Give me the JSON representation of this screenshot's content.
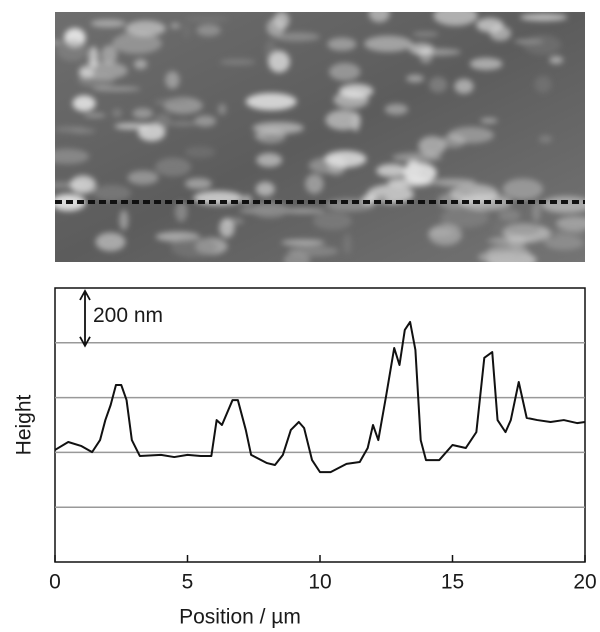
{
  "chart_data": {
    "type": "line",
    "x_label": "Position / µm",
    "y_label": "Height",
    "scale_bar": {
      "value": 200,
      "label": "200 nm"
    },
    "x": [
      0,
      0.5,
      1,
      1.4,
      1.7,
      1.9,
      2.1,
      2.3,
      2.5,
      2.7,
      2.9,
      3.2,
      4,
      4.5,
      5,
      5.5,
      5.9,
      6.1,
      6.3,
      6.7,
      6.9,
      7.2,
      7.4,
      8,
      8.3,
      8.6,
      8.9,
      9.2,
      9.4,
      9.7,
      10,
      10.4,
      11,
      11.5,
      11.8,
      12,
      12.2,
      12.5,
      12.8,
      13,
      13.2,
      13.4,
      13.6,
      13.8,
      14,
      14.5,
      15,
      15.5,
      15.9,
      16.2,
      16.5,
      16.7,
      17,
      17.2,
      17.5,
      17.8,
      18.2,
      18.7,
      19.2,
      19.7,
      20
    ],
    "values": [
      409,
      438,
      423,
      401,
      445,
      518,
      573,
      646,
      646,
      591,
      445,
      387,
      391,
      383,
      391,
      387,
      387,
      518,
      500,
      591,
      591,
      482,
      391,
      361,
      354,
      391,
      482,
      511,
      489,
      372,
      328,
      328,
      358,
      365,
      416,
      500,
      445,
      609,
      781,
      719,
      847,
      876,
      774,
      445,
      372,
      372,
      427,
      416,
      474,
      745,
      766,
      518,
      474,
      518,
      657,
      526,
      518,
      511,
      518,
      507,
      511
    ],
    "color": "#111111",
    "xlim": [
      0,
      20
    ],
    "xticks": [
      0,
      5,
      10,
      15,
      20
    ],
    "ylim": [
      0,
      1000
    ],
    "gridlines": [
      200,
      400,
      600,
      800
    ]
  }
}
